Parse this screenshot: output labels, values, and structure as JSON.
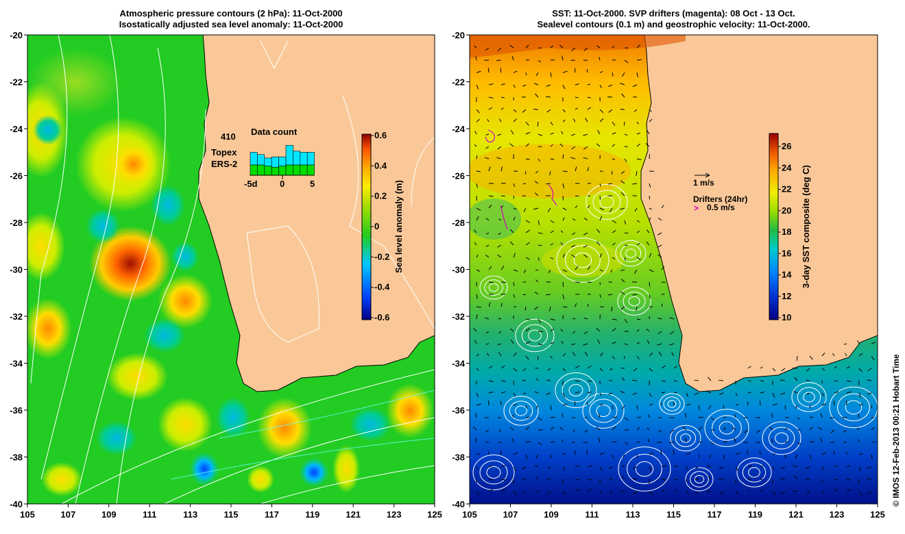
{
  "left_panel": {
    "title_line1": "Atmospheric pressure contours (2 hPa): 11-Oct-2000",
    "title_line2": "Isostatically adjusted sea level anomaly: 11-Oct-2000",
    "colorbar": {
      "label": "Sea level anomaly (m)",
      "ticks": [
        "0.6",
        "0.4",
        "0.2",
        "0",
        "-0.2",
        "-0.4",
        "-0.6"
      ],
      "colors": [
        "#00007f",
        "#0047ff",
        "#00c8ff",
        "#22cc22",
        "#aadd00",
        "#ffee00",
        "#ffaa00",
        "#ff5500",
        "#aa1100",
        "#7f0000"
      ]
    },
    "data_count": {
      "title": "Data count",
      "max_value": "410",
      "series": [
        "Topex",
        "ERS-2"
      ],
      "series_colors": [
        "#00e5ff",
        "#00dd00"
      ],
      "x_ticks": [
        "-5d",
        "0",
        "5"
      ],
      "topex_relative": [
        0.55,
        0.45,
        0.35,
        0.45,
        0.4,
        0.85,
        0.6,
        0.55,
        0.55
      ],
      "ers2_relative": [
        0.45,
        0.45,
        0.4,
        0.35,
        0.4,
        0.45,
        0.45,
        0.45,
        0.45
      ]
    }
  },
  "right_panel": {
    "title_line1": "SST: 11-Oct-2000. SVP drifters (magenta): 08 Oct - 13 Oct.",
    "title_line2": "Sealevel contours (0.1 m) and geostrophic velocity: 11-Oct-2000.",
    "colorbar": {
      "label": "3-day SST composite (deg C)",
      "ticks": [
        "26",
        "24",
        "22",
        "20",
        "18",
        "16",
        "14",
        "12",
        "10"
      ],
      "colors": [
        "#00007f",
        "#0030d0",
        "#0080ff",
        "#00cccc",
        "#22bb44",
        "#99dd00",
        "#eeee00",
        "#ffaa00",
        "#ee5500",
        "#990000"
      ]
    },
    "velocity_legend": "1 m/s",
    "drifters_title": "Drifters (24hr)",
    "drifters_speed": "0.5 m/s",
    "drifter_symbol": ">"
  },
  "map": {
    "land_color": "#fac898",
    "x_ticks": [
      "105",
      "107",
      "109",
      "111",
      "113",
      "115",
      "117",
      "119",
      "121",
      "123",
      "125"
    ],
    "y_ticks": [
      "-20",
      "-22",
      "-24",
      "-26",
      "-28",
      "-30",
      "-32",
      "-34",
      "-36",
      "-38",
      "-40"
    ]
  },
  "credit": "© IMOS 12-Feb-2013 00:21 Hobart Time"
}
